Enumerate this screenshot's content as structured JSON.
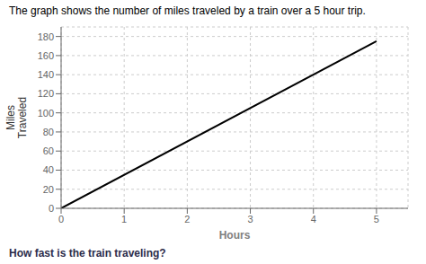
{
  "chart_data": {
    "type": "line",
    "title": "The graph shows the number of miles traveled by a train over a 5 hour trip.",
    "xlabel": "Hours",
    "ylabel": "Miles\nTraveled",
    "annotations": [
      "How fast is the train traveling?"
    ],
    "x": [
      0,
      5
    ],
    "values": [
      0,
      175
    ],
    "color": "#000000",
    "xlim": [
      0,
      5.5
    ],
    "ylim": [
      0,
      190
    ],
    "xticks": [
      0,
      1,
      2,
      3,
      4,
      5
    ],
    "yticks": [
      0,
      20,
      40,
      60,
      80,
      100,
      120,
      140,
      160,
      180
    ],
    "grid": true
  }
}
